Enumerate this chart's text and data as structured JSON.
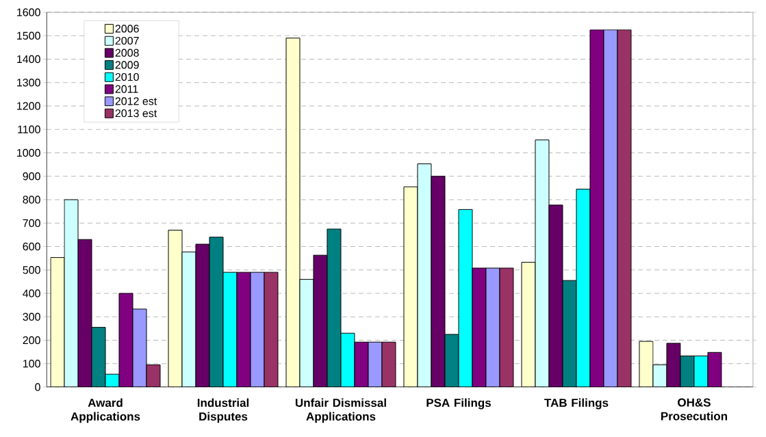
{
  "chart_data": {
    "type": "bar",
    "categories": [
      "Award Applications",
      "Industrial Disputes",
      "Unfair Dismissal Applications",
      "PSA Filings",
      "TAB Filings",
      "OH&S Prosecution"
    ],
    "series": [
      {
        "name": "2006",
        "color": "#ffffcc",
        "values": [
          553,
          670,
          1490,
          855,
          533,
          195
        ]
      },
      {
        "name": "2007",
        "color": "#ccffff",
        "values": [
          800,
          577,
          460,
          953,
          1055,
          95
        ]
      },
      {
        "name": "2008",
        "color": "#660066",
        "values": [
          630,
          610,
          563,
          900,
          777,
          187
        ]
      },
      {
        "name": "2009",
        "color": "#008080",
        "values": [
          255,
          640,
          675,
          225,
          455,
          133
        ]
      },
      {
        "name": "2010",
        "color": "#00ffff",
        "values": [
          55,
          490,
          230,
          758,
          845,
          133
        ]
      },
      {
        "name": "2011",
        "color": "#800080",
        "values": [
          400,
          490,
          192,
          508,
          1525,
          148
        ]
      },
      {
        "name": "2012 est",
        "color": "#9999ff",
        "values": [
          333,
          490,
          192,
          508,
          1525,
          null
        ]
      },
      {
        "name": "2013 est",
        "color": "#993366",
        "values": [
          95,
          490,
          192,
          508,
          1525,
          null
        ]
      }
    ],
    "ylim": [
      0,
      1600
    ],
    "yticks": [
      0,
      100,
      200,
      300,
      400,
      500,
      600,
      700,
      800,
      900,
      1000,
      1100,
      1200,
      1300,
      1400,
      1500,
      1600
    ],
    "grid": "y",
    "legend": "top left"
  }
}
